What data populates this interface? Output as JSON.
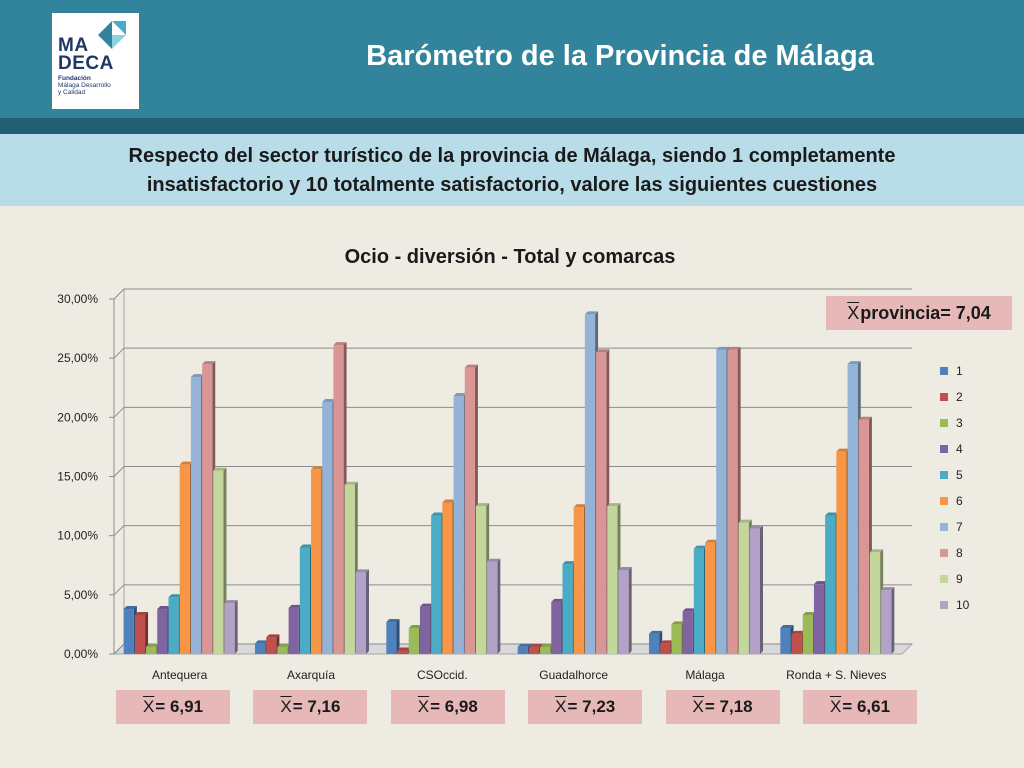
{
  "header": {
    "logo_text_line1": "MA",
    "logo_text_line2": "DECA",
    "logo_sub_line1": "Fundación",
    "logo_sub_line2": "Málaga Desarrollo",
    "logo_sub_line3": "y Calidad",
    "title": "Barómetro de la Provincia de Málaga"
  },
  "question": "Respecto del sector turístico de la provincia de Málaga, siendo 1 completamente insatisfactorio y 10 totalmente satisfactorio, valore las siguientes cuestiones",
  "province_mean": {
    "symbol": "X",
    "label": " provincia= 7,04"
  },
  "region_means": [
    {
      "symbol": "X",
      "value": "= 6,91"
    },
    {
      "symbol": "X",
      "value": "= 7,16"
    },
    {
      "symbol": "X",
      "value": "= 6,98"
    },
    {
      "symbol": "X",
      "value": "= 7,23"
    },
    {
      "symbol": "X",
      "value": "= 7,18"
    },
    {
      "symbol": "X",
      "value": "= 6,61"
    }
  ],
  "colors": {
    "1": "#4f81bd",
    "2": "#c0504d",
    "3": "#9bbb59",
    "4": "#8064a2",
    "5": "#4bacc6",
    "6": "#f79646",
    "7": "#95b3d7",
    "8": "#da9694",
    "9": "#c3d69b",
    "10": "#b3a2c7"
  },
  "chart_data": {
    "type": "bar",
    "title": "Ocio - diversión - Total y comarcas",
    "categories": [
      "Antequera",
      "Axarquía",
      "CSOccid.",
      "Guadalhorce",
      "Málaga",
      "Ronda + S. Nieves"
    ],
    "ylim": [
      0,
      30
    ],
    "yticks": [
      "0,00%",
      "5,00%",
      "10,00%",
      "15,00%",
      "20,00%",
      "25,00%",
      "30,00%"
    ],
    "legend_position": "right",
    "series": [
      {
        "name": "1",
        "values": [
          3.8,
          0.9,
          2.7,
          0.6,
          1.7,
          2.2
        ]
      },
      {
        "name": "2",
        "values": [
          3.3,
          1.4,
          0.3,
          0.6,
          0.9,
          1.7
        ]
      },
      {
        "name": "3",
        "values": [
          0.6,
          0.6,
          2.2,
          0.6,
          2.5,
          3.3
        ]
      },
      {
        "name": "4",
        "values": [
          3.8,
          3.9,
          4.0,
          4.4,
          3.6,
          5.9
        ]
      },
      {
        "name": "5",
        "values": [
          4.8,
          9.0,
          11.7,
          7.6,
          8.9,
          11.7
        ]
      },
      {
        "name": "6",
        "values": [
          16.0,
          15.6,
          12.8,
          12.4,
          9.4,
          17.1
        ]
      },
      {
        "name": "7",
        "values": [
          23.4,
          21.3,
          21.8,
          28.7,
          25.7,
          24.5
        ]
      },
      {
        "name": "8",
        "values": [
          24.5,
          26.1,
          24.2,
          25.5,
          25.7,
          19.8
        ]
      },
      {
        "name": "9",
        "values": [
          15.5,
          14.3,
          12.5,
          12.5,
          11.1,
          8.6
        ]
      },
      {
        "name": "10",
        "values": [
          4.3,
          6.9,
          7.8,
          7.1,
          10.6,
          5.4
        ]
      }
    ]
  }
}
